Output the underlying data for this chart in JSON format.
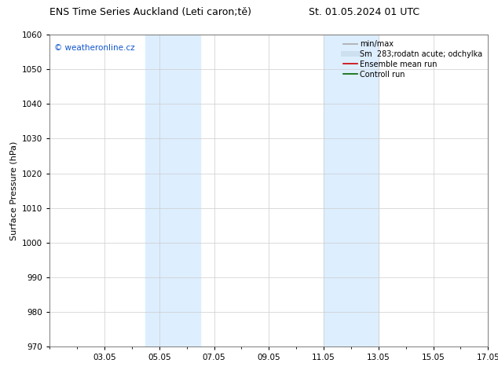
{
  "title_left": "ENS Time Series Auckland (Leti caron;tě)",
  "title_right": "St. 01.05.2024 01 UTC",
  "ylabel": "Surface Pressure (hPa)",
  "ylim": [
    970,
    1060
  ],
  "yticks": [
    970,
    980,
    990,
    1000,
    1010,
    1020,
    1030,
    1040,
    1050,
    1060
  ],
  "xlim": [
    1,
    17
  ],
  "xtick_labels": [
    "03.05",
    "05.05",
    "07.05",
    "09.05",
    "11.05",
    "13.05",
    "15.05",
    "17.05"
  ],
  "xtick_positions": [
    3,
    5,
    7,
    9,
    11,
    13,
    15,
    17
  ],
  "shaded_bands": [
    {
      "x_start": 4.5,
      "x_end": 6.5,
      "color": "#ddeeff"
    },
    {
      "x_start": 11.0,
      "x_end": 13.0,
      "color": "#ddeeff"
    }
  ],
  "watermark_text": "© weatheronline.cz",
  "watermark_color": "#1155cc",
  "legend_items": [
    {
      "label": "min/max",
      "color": "#aaaaaa",
      "lw": 1.2,
      "style": "-"
    },
    {
      "label": "Sm  283;rodatn acute; odchylka",
      "color": "#cce0f0",
      "lw": 5,
      "style": "-"
    },
    {
      "label": "Ensemble mean run",
      "color": "#cc0000",
      "lw": 1.2,
      "style": "-"
    },
    {
      "label": "Controll run",
      "color": "#006600",
      "lw": 1.2,
      "style": "-"
    }
  ],
  "background_color": "#ffffff",
  "plot_bg_color": "#ffffff",
  "grid_color": "#cccccc",
  "title_fontsize": 9,
  "axis_label_fontsize": 8,
  "tick_fontsize": 7.5,
  "legend_fontsize": 7,
  "watermark_fontsize": 7.5
}
